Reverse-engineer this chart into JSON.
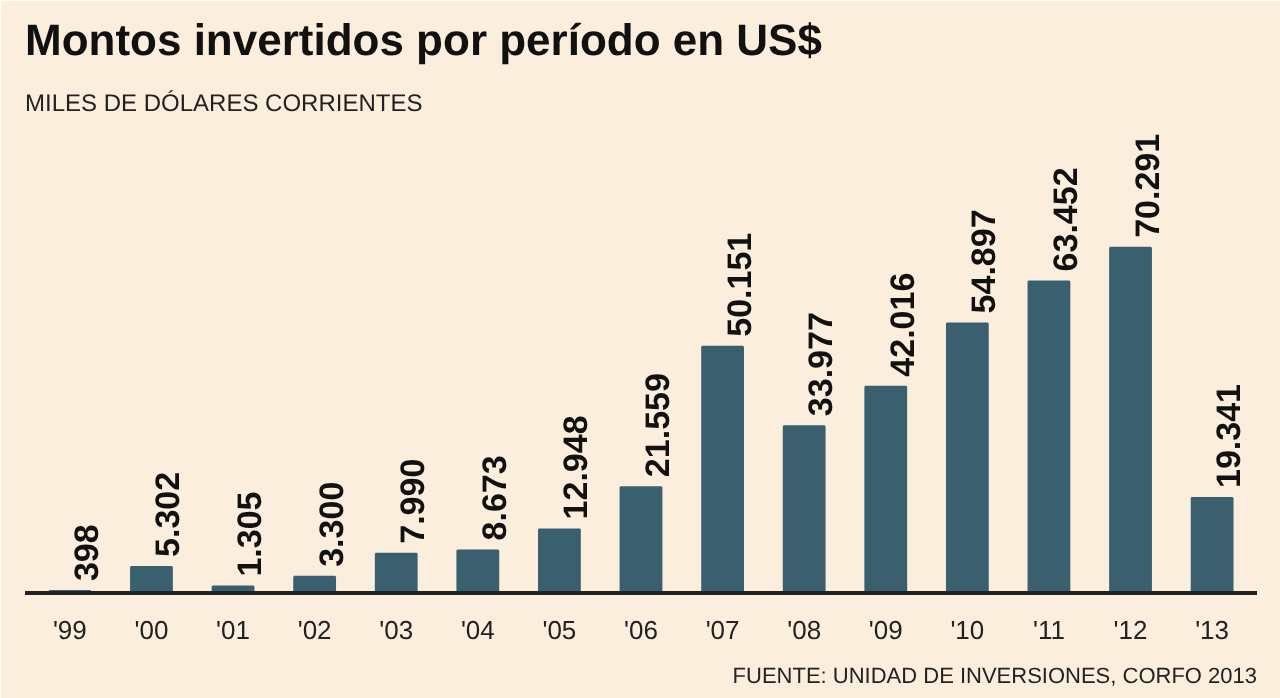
{
  "chart_data": {
    "type": "bar",
    "title": "Montos invertidos por período en US$",
    "subtitle": "MILES DE DÓLARES CORRIENTES",
    "categories": [
      "'99",
      "'00",
      "'01",
      "'02",
      "'03",
      "'04",
      "'05",
      "'06",
      "'07",
      "'08",
      "'09",
      "'10",
      "'11",
      "'12",
      "'13"
    ],
    "values": [
      398,
      5302,
      1305,
      3300,
      7990,
      8673,
      12948,
      21559,
      50151,
      33977,
      42016,
      54897,
      63452,
      70291,
      19341
    ],
    "value_labels": [
      "398",
      "5.302",
      "1.305",
      "3.300",
      "7.990",
      "8.673",
      "12.948",
      "21.559",
      "50.151",
      "33.977",
      "42.016",
      "54.897",
      "63.452",
      "70.291",
      "19.341"
    ],
    "color": "#3a5f6f",
    "annotations": [
      "FUENTE: UNIDAD DE INVERSIONES, CORFO 2013"
    ]
  }
}
